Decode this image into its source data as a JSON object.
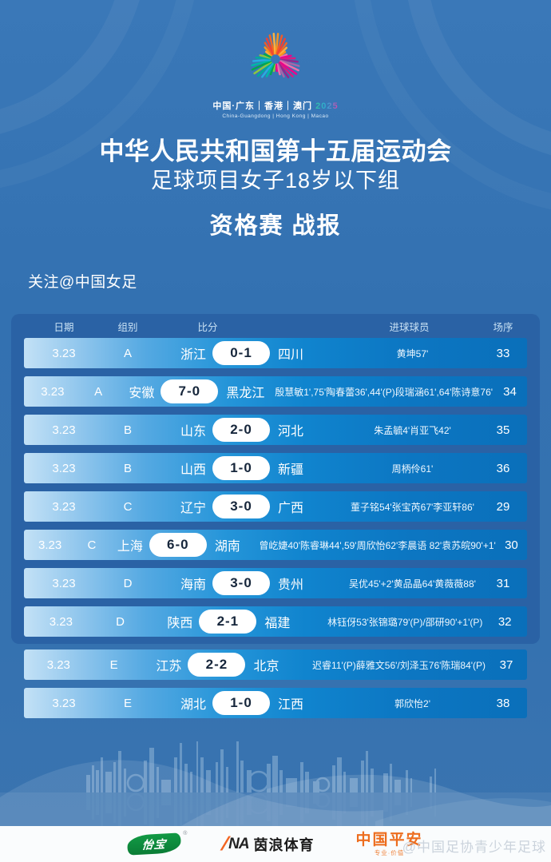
{
  "emblem": {
    "line1_cn": "中国·广东｜香港｜澳门",
    "year": "2025",
    "line2_en": "China-Guangdong | Hong Kong | Macao"
  },
  "header": {
    "title1": "中华人民共和国第十五届运动会",
    "title2": "足球项目女子18岁以下组",
    "title3": "资格赛 战报",
    "follow": "关注@中国女足"
  },
  "table": {
    "columns": {
      "date": "日期",
      "group": "组别",
      "score": "比分",
      "scorers": "进球球员",
      "order": "场序"
    },
    "rows": [
      {
        "date": "3.23",
        "group": "A",
        "home": "浙江",
        "score": "0-1",
        "away": "四川",
        "scorers": "黄坤57'",
        "order": "33"
      },
      {
        "date": "3.23",
        "group": "A",
        "home": "安徽",
        "score": "7-0",
        "away": "黑龙江",
        "scorers": "殷慧敏1',75'陶春蕾36',44'(P)段瑞涵61',64'陈诗意76'",
        "order": "34"
      },
      {
        "date": "3.23",
        "group": "B",
        "home": "山东",
        "score": "2-0",
        "away": "河北",
        "scorers": "朱孟毓4'肖亚飞42'",
        "order": "35"
      },
      {
        "date": "3.23",
        "group": "B",
        "home": "山西",
        "score": "1-0",
        "away": "新疆",
        "scorers": "周柄伶61'",
        "order": "36"
      },
      {
        "date": "3.23",
        "group": "C",
        "home": "辽宁",
        "score": "3-0",
        "away": "广西",
        "scorers": "董子铭54'张宝芮67'李亚轩86'",
        "order": "29"
      },
      {
        "date": "3.23",
        "group": "C",
        "home": "上海",
        "score": "6-0",
        "away": "湖南",
        "scorers": "曾屹婕40'陈睿琳44',59'周欣怡62'李晨语 82'袁苏皖90'+1'",
        "order": "30"
      },
      {
        "date": "3.23",
        "group": "D",
        "home": "海南",
        "score": "3-0",
        "away": "贵州",
        "scorers": "吴优45'+2'黄品晶64'黄薇薇88'",
        "order": "31"
      },
      {
        "date": "3.23",
        "group": "D",
        "home": "陕西",
        "score": "2-1",
        "away": "福建",
        "scorers": "林钰伢53'张锦璐79'(P)/邵研90'+1'(P)",
        "order": "32"
      },
      {
        "date": "3.23",
        "group": "E",
        "home": "江苏",
        "score": "2-2",
        "away": "北京",
        "scorers": "迟睿11'(P)薛雅文56'/刘泽玉76'陈瑞84'(P)",
        "order": "37"
      },
      {
        "date": "3.23",
        "group": "E",
        "home": "湖北",
        "score": "1-0",
        "away": "江西",
        "scorers": "郭欣怡2'",
        "order": "38"
      }
    ]
  },
  "footer": {
    "cestbon": "怡宝",
    "cestbon_reg": "®",
    "ina_slash": "/",
    "ina_prefix": "NA",
    "ina_name": "茵浪体育",
    "pingan": "中国平安",
    "pingan_sub": "专业·价值"
  },
  "watermark": "@中国足协青少年足球",
  "colors": {
    "page_background": "#3572b0",
    "panel_background": "#2a62a5",
    "row_gradient_left": "#c3e1f6",
    "row_gradient_right": "#0a6fba",
    "pill_background": "#ffffff",
    "pill_text": "#16263b",
    "header_text": "#c8e1f4",
    "cestbon_green": "#0e8c3c",
    "ina_orange": "#f26522",
    "pingan_orange": "#ed6d1e"
  }
}
